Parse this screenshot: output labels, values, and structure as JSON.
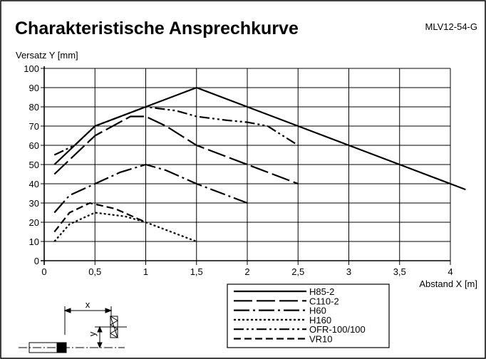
{
  "header": {
    "title": "Charakteristische Ansprechkurve",
    "model": "MLV12-54-G"
  },
  "chart_data": {
    "type": "line",
    "title": "Charakteristische Ansprechkurve",
    "xlabel": "Abstand X [m]",
    "ylabel": "Versatz Y [mm]",
    "xlim": [
      0,
      4
    ],
    "ylim": [
      0,
      100
    ],
    "x_ticks": [
      "0",
      "0,5",
      "1",
      "1,5",
      "2",
      "2,5",
      "3",
      "3,5",
      "4"
    ],
    "y_ticks": [
      "0",
      "10",
      "20",
      "30",
      "40",
      "50",
      "60",
      "70",
      "80",
      "90",
      "100"
    ],
    "grid": true,
    "legend_position": "bottom-center, below plot",
    "series": [
      {
        "name": "H85-2",
        "dash": "solid",
        "points": [
          [
            0.1,
            50
          ],
          [
            0.3,
            60
          ],
          [
            0.5,
            70
          ],
          [
            1.0,
            80
          ],
          [
            1.5,
            90
          ],
          [
            2.5,
            70
          ],
          [
            3.0,
            60
          ],
          [
            3.5,
            50
          ],
          [
            4.0,
            40
          ],
          [
            4.15,
            37
          ]
        ]
      },
      {
        "name": "C110-2",
        "dash": "long-dash",
        "points": [
          [
            0.1,
            45
          ],
          [
            0.5,
            65
          ],
          [
            0.85,
            75
          ],
          [
            1.0,
            75
          ],
          [
            1.2,
            70
          ],
          [
            1.5,
            60
          ],
          [
            2.0,
            50
          ],
          [
            2.5,
            40
          ]
        ]
      },
      {
        "name": "H60",
        "dash": "long-dash-dot",
        "points": [
          [
            0.1,
            25
          ],
          [
            0.25,
            34
          ],
          [
            0.5,
            40
          ],
          [
            0.75,
            46
          ],
          [
            1.0,
            50
          ],
          [
            1.2,
            47
          ],
          [
            1.5,
            40
          ],
          [
            2.0,
            30
          ]
        ]
      },
      {
        "name": "H160",
        "dash": "dotted",
        "points": [
          [
            0.1,
            10
          ],
          [
            0.25,
            19
          ],
          [
            0.5,
            25
          ],
          [
            0.8,
            23
          ],
          [
            1.0,
            20
          ],
          [
            1.5,
            10
          ]
        ]
      },
      {
        "name": "OFR-100/100",
        "dash": "dash-dot-dot",
        "points": [
          [
            0.1,
            55
          ],
          [
            0.3,
            60
          ],
          [
            0.5,
            70
          ],
          [
            1.0,
            80
          ],
          [
            1.3,
            78
          ],
          [
            1.5,
            75
          ],
          [
            1.8,
            73
          ],
          [
            2.0,
            72
          ],
          [
            2.2,
            70
          ],
          [
            2.5,
            60
          ]
        ]
      },
      {
        "name": "VR10",
        "dash": "dashed",
        "points": [
          [
            0.1,
            15
          ],
          [
            0.25,
            25
          ],
          [
            0.45,
            30
          ],
          [
            0.7,
            27
          ],
          [
            1.0,
            20
          ]
        ]
      }
    ]
  },
  "diagram": {
    "x_label": "x",
    "y_label": "y"
  }
}
